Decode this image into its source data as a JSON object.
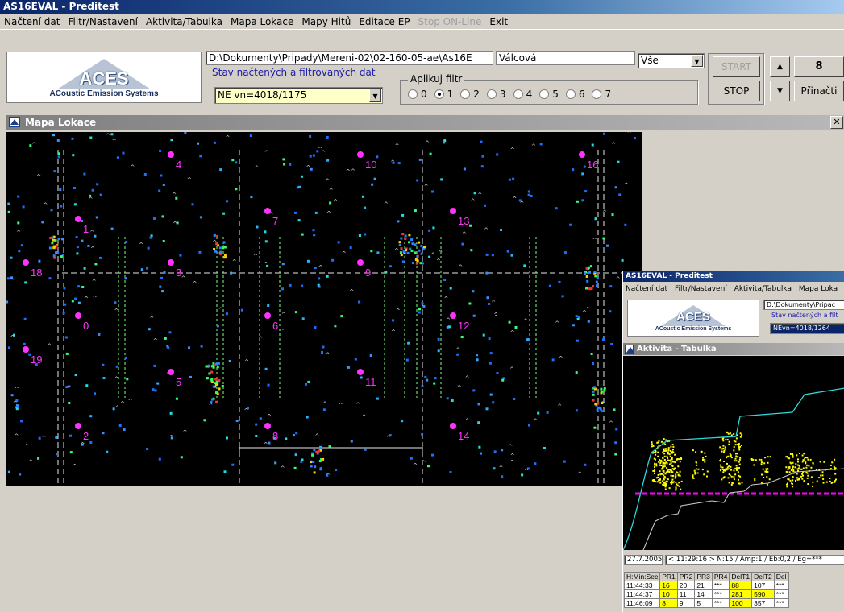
{
  "app": {
    "title": "AS16EVAL - Preditest"
  },
  "menu": [
    "Načtení dat",
    "Filtr/Nastavení",
    "Aktivita/Tabulka",
    "Mapa Lokace",
    "Mapy Hitů",
    "Editace EP",
    "Stop ON-Line",
    "Exit"
  ],
  "menu_disabled": [
    "Stop ON-Line"
  ],
  "logo": {
    "big": "ACES",
    "sub": "ACoustic Emission Systems"
  },
  "toolbar": {
    "path": "D:\\Dokumenty\\Pripady\\Mereni-02\\02-160-05-ae\\As16E",
    "object_name": "Válcová",
    "status_label": "Stav načtených a filtrovaných dat",
    "ne_value": "NE vn=4018/1175",
    "scope_select": "Vše",
    "filter_group_label": "Aplikuj filtr",
    "filter_options": [
      "0",
      "1",
      "2",
      "3",
      "4",
      "5",
      "6",
      "7"
    ],
    "filter_selected": "1",
    "start_label": "START",
    "stop_label": "STOP",
    "counter": "8",
    "reload_label": "Přinačti"
  },
  "map_window": {
    "title": "Mapa Lokace",
    "close": "✕",
    "sensor_labels": [
      "0",
      "1",
      "2",
      "3",
      "4",
      "5",
      "6",
      "7",
      "8",
      "9",
      "10",
      "11",
      "12",
      "13",
      "14",
      "16",
      "18",
      "19"
    ]
  },
  "sub_window": {
    "app_title": "AS16EVAL - Preditest",
    "menu": [
      "Načtení dat",
      "Filtr/Nastavení",
      "Aktivita/Tabulka",
      "Mapa Loka"
    ],
    "path": "D:\\Dokumenty\\Pripac",
    "status_label": "Stav načtených a filt",
    "ne_value": "NEvn=4018/1264",
    "activity_title": "Aktivita - Tabulka",
    "date": "27.7.2005",
    "info": "< 11:29:16 > N:15 / Amp:1 / Eb:0,2 / Eg=***",
    "table": {
      "headers": [
        "H:Min:Sec",
        "PR1",
        "PR2",
        "PR3",
        "PR4",
        "DelT1",
        "DelT2",
        "Del"
      ],
      "rows": [
        [
          "11:44:33",
          "16",
          "20",
          "21",
          "***",
          "88",
          "107",
          "***"
        ],
        [
          "11:44:37",
          "10",
          "11",
          "14",
          "***",
          "281",
          "590",
          "***"
        ],
        [
          "11:46:09",
          "8",
          "9",
          "5",
          "***",
          "100",
          "357",
          "***"
        ]
      ]
    }
  },
  "colors": {
    "title_active": "#0a246a",
    "map_bg": "#000000",
    "sensor": "#ff33ff",
    "grid": "#e8e8e8",
    "highlight": "#ffff00"
  }
}
